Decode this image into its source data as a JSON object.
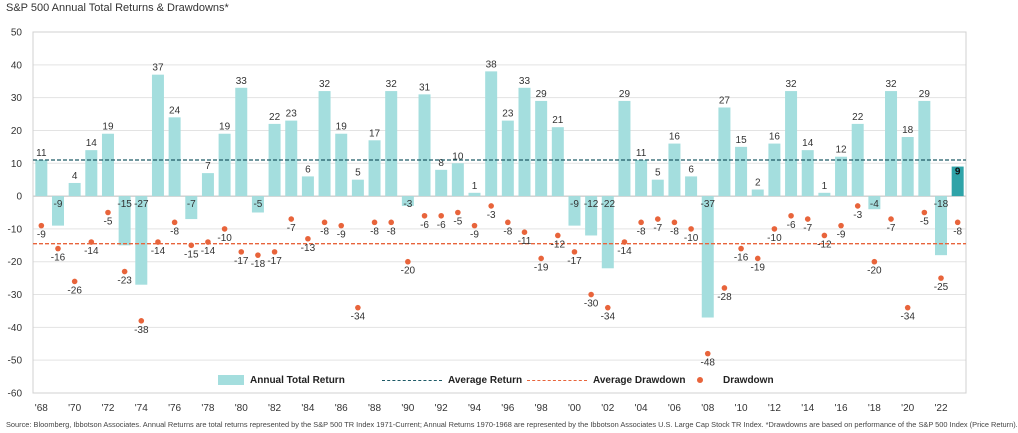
{
  "title": "S&P 500 Annual Total Returns & Drawdowns*",
  "source": "Source: Bloomberg, Ibbotson Associates. Annual Returns are total returns represented by the S&P 500 TR Index 1971-Current; Annual Returns 1970-1968 are represented by the Ibbotson Associates U.S. Large Cap Stock TR Index. *Drawdowns are based on performance of the S&P 500 Index (Price Return).",
  "legend": {
    "bars": "Annual Total Return",
    "avg_return": "Average Return",
    "avg_drawdown": "Average Drawdown",
    "drawdown": "Drawdown"
  },
  "colors": {
    "bar": "#a4dede",
    "bar_highlight": "#2fa3a8",
    "avg_return": "#1d5a66",
    "drawdown": "#e8643b",
    "grid": "#e3e3e3"
  },
  "chart_data": {
    "type": "bar",
    "title": "S&P 500 Annual Total Returns & Drawdowns*",
    "ylim": [
      -60,
      50
    ],
    "yticks": [
      -60,
      -50,
      -40,
      -30,
      -20,
      -10,
      0,
      10,
      20,
      30,
      40,
      50
    ],
    "grid": true,
    "legend_position": "bottom",
    "categories": [
      "1968",
      "1969",
      "1970",
      "1971",
      "1972",
      "1973",
      "1974",
      "1975",
      "1976",
      "1977",
      "1978",
      "1979",
      "1980",
      "1981",
      "1982",
      "1983",
      "1984",
      "1985",
      "1986",
      "1987",
      "1988",
      "1989",
      "1990",
      "1991",
      "1992",
      "1993",
      "1994",
      "1995",
      "1996",
      "1997",
      "1998",
      "1999",
      "2000",
      "2001",
      "2002",
      "2003",
      "2004",
      "2005",
      "2006",
      "2007",
      "2008",
      "2009",
      "2010",
      "2011",
      "2012",
      "2013",
      "2014",
      "2015",
      "2016",
      "2017",
      "2018",
      "2019",
      "2020",
      "2021",
      "2022",
      "2023"
    ],
    "xtick_labels": [
      "'68",
      "'70",
      "'72",
      "'74",
      "'76",
      "'78",
      "'80",
      "'82",
      "'84",
      "'86",
      "'88",
      "'90",
      "'92",
      "'94",
      "'96",
      "'98",
      "'00",
      "'02",
      "'04",
      "'06",
      "'08",
      "'10",
      "'12",
      "'14",
      "'16",
      "'18",
      "'20",
      "'22"
    ],
    "series": [
      {
        "name": "Annual Total Return",
        "values": [
          11,
          -9,
          4,
          14,
          19,
          -15,
          -27,
          37,
          24,
          -7,
          7,
          19,
          33,
          -5,
          22,
          23,
          6,
          32,
          19,
          5,
          17,
          32,
          -3,
          31,
          8,
          10,
          1,
          38,
          23,
          33,
          29,
          21,
          -9,
          -12,
          -22,
          29,
          11,
          5,
          16,
          6,
          -37,
          27,
          15,
          2,
          16,
          32,
          14,
          1,
          12,
          22,
          -4,
          32,
          18,
          29,
          -18,
          9
        ],
        "value_labels": [
          "11",
          "-9",
          "4",
          "14",
          "19",
          "-15",
          "-27",
          "37",
          "24",
          "-7",
          "7",
          "19",
          "33",
          "-5",
          "22",
          "23",
          "6",
          "32",
          "19",
          "5",
          "17",
          "32",
          "-3",
          "31",
          "8",
          "10",
          "1",
          "38",
          "23",
          "33",
          "29",
          "21",
          "-9",
          "-12",
          "-22",
          "29",
          "11",
          "5",
          "16",
          "6",
          "-37",
          "27",
          "15",
          "2",
          "16",
          "32",
          "14",
          "1",
          "12",
          "22",
          "-4",
          "32",
          "18",
          "29",
          "-18",
          "9"
        ]
      },
      {
        "name": "Drawdown",
        "values": [
          -9,
          -16,
          -26,
          -14,
          -5,
          -23,
          -38,
          -14,
          -8,
          -15,
          -14,
          -10,
          -17,
          -18,
          -17,
          -7,
          -13,
          -8,
          -9,
          -34,
          -8,
          -8,
          -20,
          -6,
          -6,
          -5,
          -9,
          -3,
          -8,
          -11,
          -19,
          -12,
          -17,
          -30,
          -34,
          -14,
          -8,
          -7,
          -8,
          -10,
          -48,
          -28,
          -16,
          -19,
          -10,
          -6,
          -7,
          -12,
          -9,
          -3,
          -20,
          -7,
          -34,
          -5,
          -25,
          -8
        ],
        "value_labels": [
          "-9",
          "-16",
          "-26",
          "-14",
          "-5",
          "-23",
          "-38",
          "-14",
          "-8",
          "-15",
          "-14",
          "-10",
          "-17",
          "-18",
          "-17",
          "-7",
          "-13",
          "-8",
          "-9",
          "-34",
          "-8",
          "-8",
          "-20",
          "-6",
          "-6",
          "-5",
          "-9",
          "-3",
          "-8",
          "-11",
          "-19",
          "-12",
          "-17",
          "-30",
          "-34",
          "-14",
          "-8",
          "-7",
          "-8",
          "-10",
          "-48",
          "-28",
          "-16",
          "-19",
          "-10",
          "-6",
          "-7",
          "-12",
          "-9",
          "-3",
          "-20",
          "-7",
          "-34",
          "-5",
          "-25",
          "-8"
        ]
      }
    ],
    "average_return": 11,
    "average_drawdown": -14.5,
    "highlight_last_bar": true
  }
}
